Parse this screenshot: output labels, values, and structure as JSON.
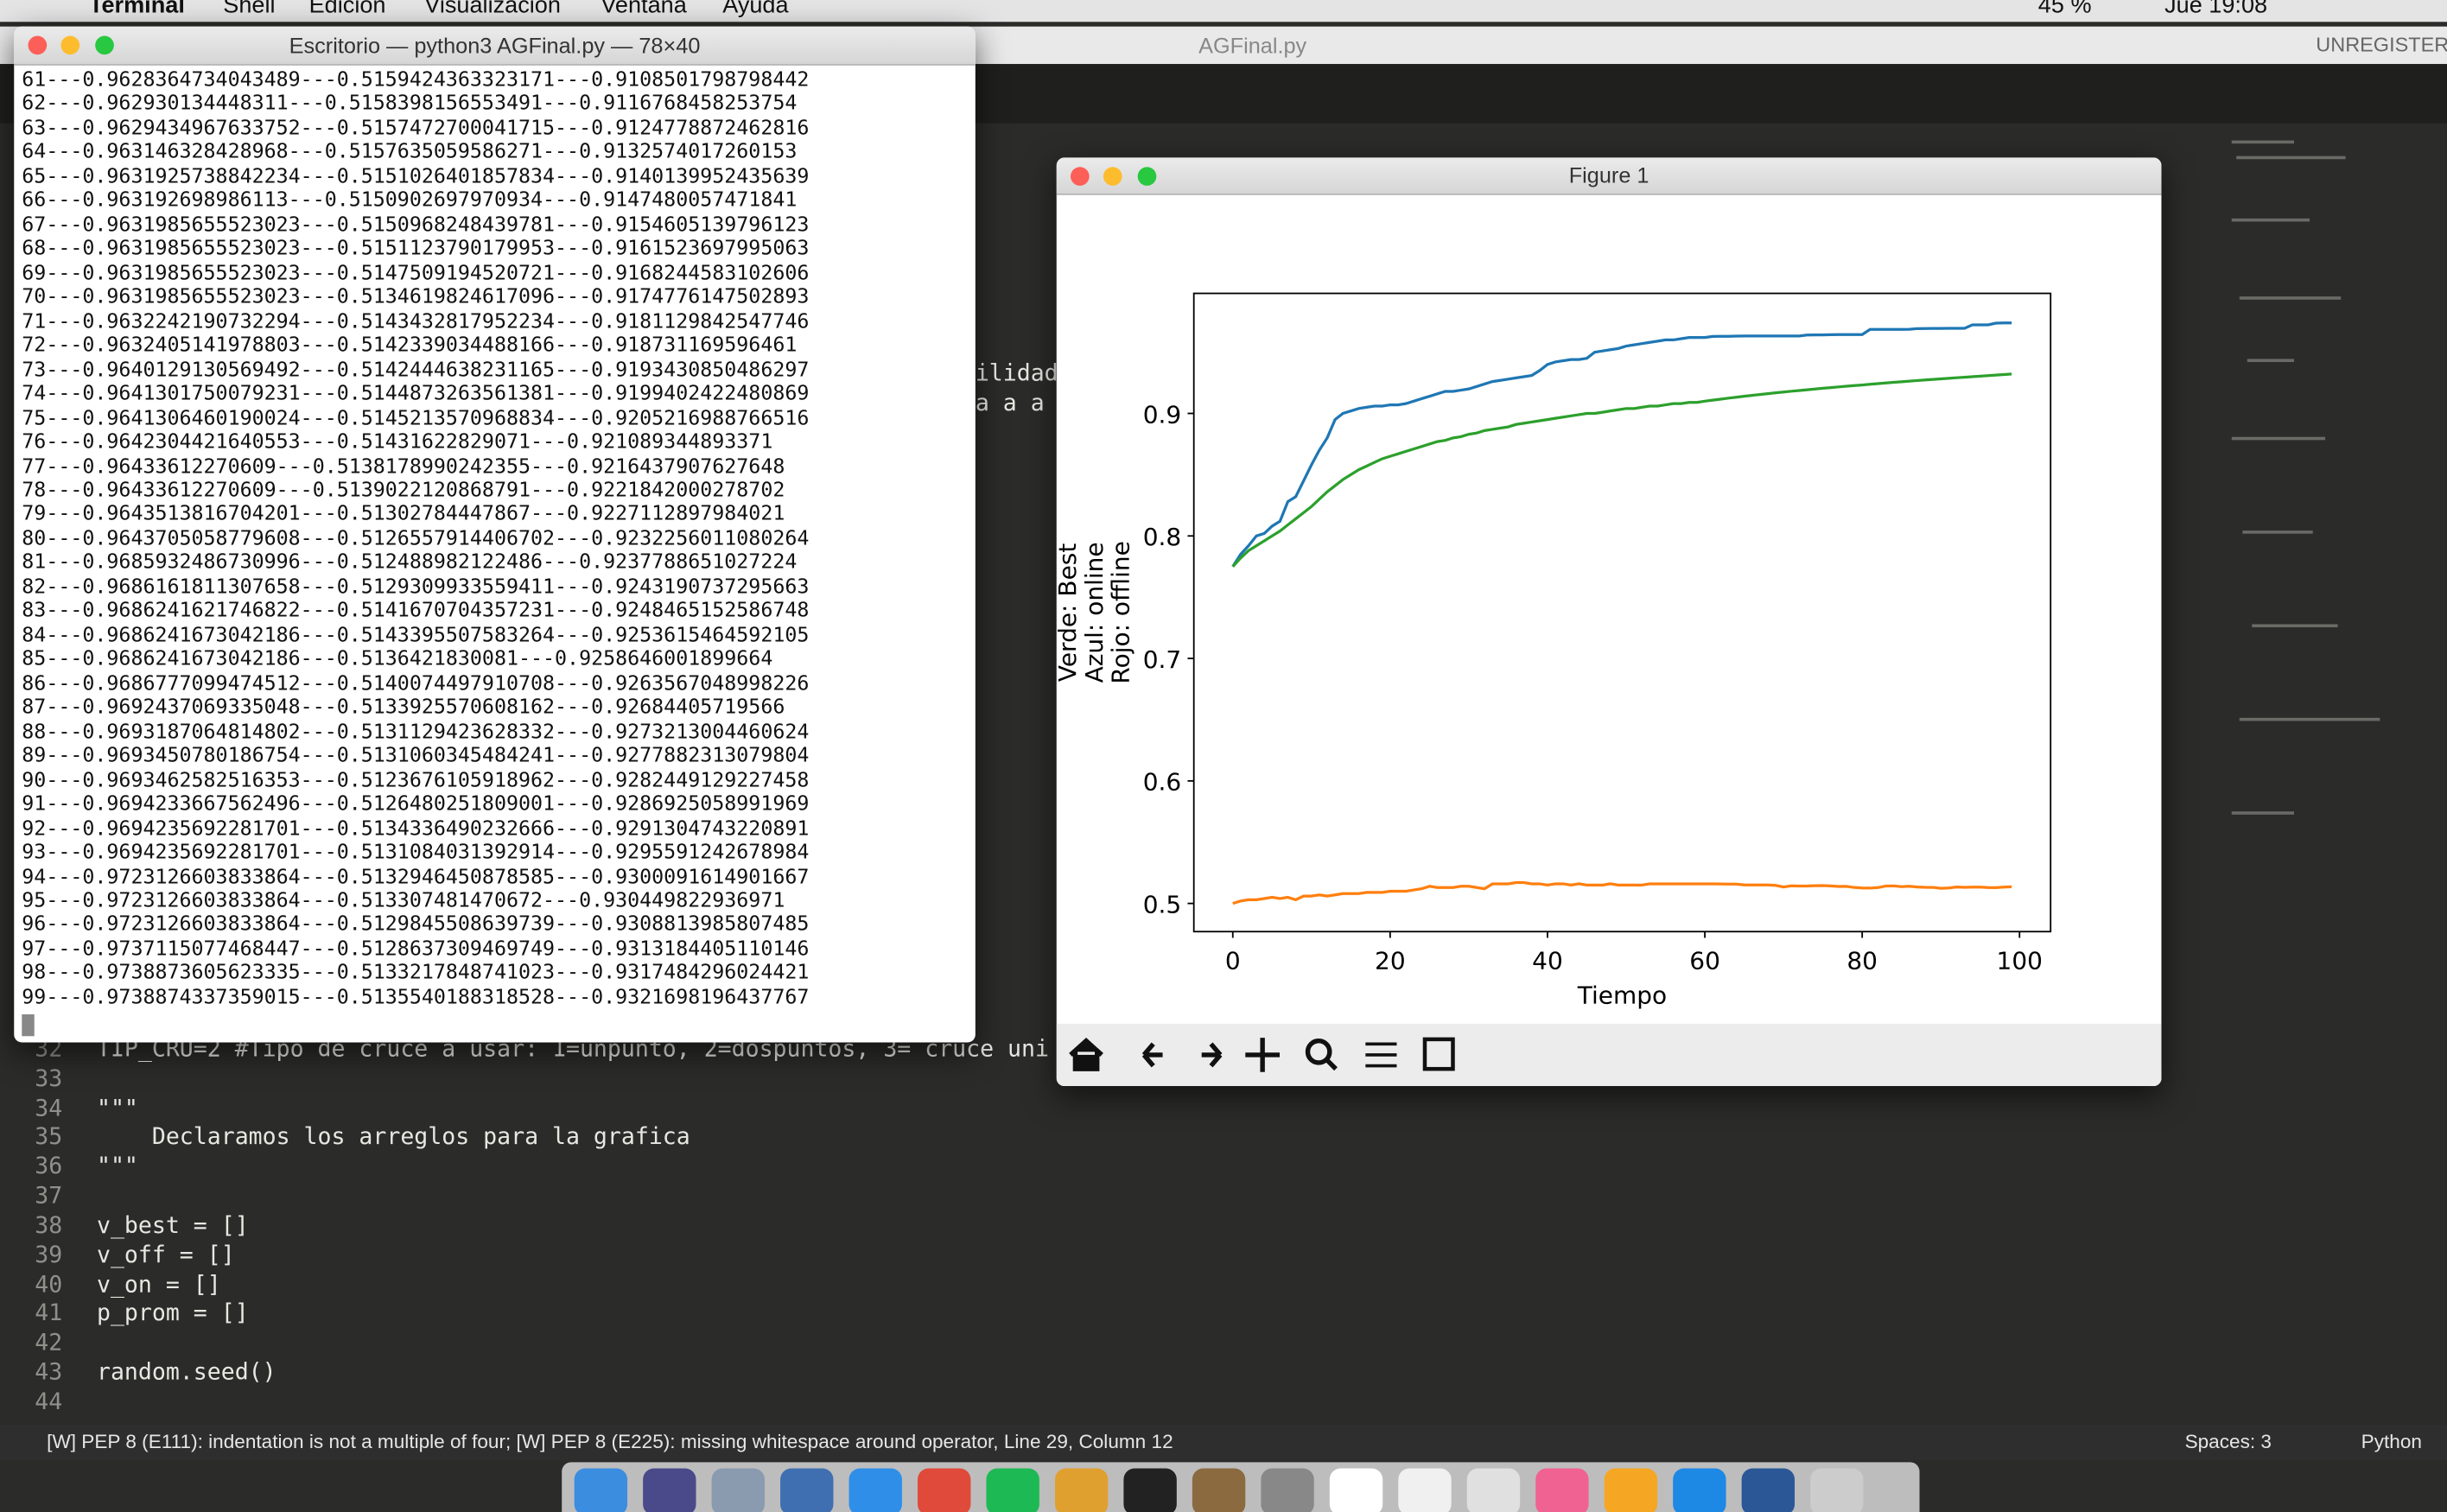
{
  "menubar": {
    "items": [
      "Terminal",
      "Shell",
      "Edición",
      "Visualización",
      "Ventana",
      "Ayuda"
    ],
    "battery": "45 %",
    "clock": "Jue 19:08"
  },
  "editor": {
    "tab": "AGFinal.py",
    "license": "UNREGISTER",
    "fragments": [
      "ilidad",
      "a a a"
    ],
    "lines": [
      {
        "number": 32,
        "code": "TIP_CRU=2 #Tipo de cruce a usar: 1=unpunto, 2=dospuntos, 3= cruce uni"
      },
      {
        "number": 33
      },
      {
        "number": 34,
        "code": "\"\"\""
      },
      {
        "number": 35,
        "code": "    Declaramos los arreglos para la grafica"
      },
      {
        "number": 36,
        "code": "\"\"\""
      },
      {
        "number": 37
      },
      {
        "number": 38,
        "code": "v_best = []"
      },
      {
        "number": 39,
        "code": "v_off = []"
      },
      {
        "number": 40,
        "code": "v_on = []"
      },
      {
        "number": 41,
        "code": "p_prom = []"
      },
      {
        "number": 42
      },
      {
        "number": 43,
        "code": "random.seed()"
      },
      {
        "number": 44
      }
    ],
    "status": {
      "message": "[W] PEP 8 (E111): indentation is not a multiple of four; [W] PEP 8 (E225): missing whitespace around operator, Line 29, Column 12",
      "spaces": "Spaces: 3",
      "language": "Python"
    }
  },
  "terminal": {
    "title": "Escritorio — python3 AGFinal.py — 78×40",
    "lines": [
      "61---0.9628364734043489---0.5159424363323171---0.9108501798798442",
      "62---0.962930134448311---0.5158398156553491---0.9116768458253754",
      "63---0.9629434967633752---0.5157472700041715---0.9124778872462816",
      "64---0.963146328428968---0.5157635059586271---0.9132574017260153",
      "65---0.9631925738842234---0.5151026401857834---0.9140139952435639",
      "66---0.963192698986113---0.5150902697970934---0.9147480057471841",
      "67---0.9631985655523023---0.5150968248439781---0.9154605139796123",
      "68---0.9631985655523023---0.5151123790179953---0.9161523697995063",
      "69---0.9631985655523023---0.5147509194520721---0.9168244583102606",
      "70---0.9631985655523023---0.5134619824617096---0.9174776147502893",
      "71---0.9632242190732294---0.5143432817952234---0.9181129842547746",
      "72---0.9632405141978803---0.5142339034488166---0.918731169596461",
      "73---0.9640129130569492---0.5142444638231165---0.9193430850486297",
      "74---0.9641301750079231---0.5144873263561381---0.9199402422480869",
      "75---0.9641306460190024---0.5145213570968834---0.9205216988766516",
      "76---0.9642304421640553---0.51431622829071---0.921089344893371",
      "77---0.96433612270609---0.5138178990242355---0.9216437907627648",
      "78---0.96433612270609---0.5139022120868791---0.9221842000278702",
      "79---0.9643513816704201---0.51302784447867---0.9227112897984021",
      "80---0.9643705058779608---0.5126557914406702---0.9232256011080264",
      "81---0.9685932486730996---0.512488982122486---0.9237788651027224",
      "82---0.9686161811307658---0.5129309933559411---0.9243190737295663",
      "83---0.9686241621746822---0.5141670704357231---0.9248465152586748",
      "84---0.9686241673042186---0.5143395507583264---0.9253615464592105",
      "85---0.9686241673042186---0.5136421830081---0.9258646001899664",
      "86---0.9686777099474512---0.5140074497910708---0.9263567048998226",
      "87---0.9692437069335048---0.5133925570608162---0.92684405719566",
      "88---0.9693187064814802---0.5131129423628332---0.9273213004460624",
      "89---0.9693450780186754---0.5131060345484241---0.9277882313079804",
      "90---0.9693462582516353---0.5123676105918962---0.9282449129227458",
      "91---0.9694233667562496---0.5126480251809001---0.9286925058991969",
      "92---0.9694235692281701---0.5134336490232666---0.9291304743220891",
      "93---0.9694235692281701---0.5131084031392914---0.9295591242678984",
      "94---0.9723126603833864---0.5132946450878585---0.9300091614901667",
      "95---0.9723126603833864---0.513307481470672---0.930449822936971",
      "96---0.9723126603833864---0.5129845508639739---0.9308813985807485",
      "97---0.9737115077468447---0.5128637309469749---0.9313184405110146",
      "98---0.9738873605623335---0.5133217848741023---0.9317484296024421",
      "99---0.9738874337359015---0.5135540188318528---0.9321698196437767"
    ]
  },
  "figure_window": {
    "title": "Figure 1"
  },
  "chart_data": {
    "type": "line",
    "ylabel": [
      "Verde: Best",
      "Azul: online",
      "Rojo: offline"
    ],
    "xlabel": "Tiempo",
    "x": [
      0,
      1,
      2,
      3,
      4,
      5,
      6,
      7,
      8,
      9,
      10,
      11,
      12,
      13,
      14,
      15,
      16,
      17,
      18,
      19,
      20,
      21,
      22,
      23,
      24,
      25,
      26,
      27,
      28,
      29,
      30,
      31,
      32,
      33,
      34,
      35,
      36,
      37,
      38,
      39,
      40,
      41,
      42,
      43,
      44,
      45,
      46,
      47,
      48,
      49,
      50,
      51,
      52,
      53,
      54,
      55,
      56,
      57,
      58,
      59,
      60,
      61,
      62,
      63,
      64,
      65,
      66,
      67,
      68,
      69,
      70,
      71,
      72,
      73,
      74,
      75,
      76,
      77,
      78,
      79,
      80,
      81,
      82,
      83,
      84,
      85,
      86,
      87,
      88,
      89,
      90,
      91,
      92,
      93,
      94,
      95,
      96,
      97,
      98,
      99
    ],
    "xlim": [
      -4.95,
      103.95
    ],
    "xticks": [
      0,
      20,
      40,
      60,
      80,
      100
    ],
    "ylim": [
      0.477,
      0.998
    ],
    "yticks": [
      0.5,
      0.6,
      0.7,
      0.8,
      0.9
    ],
    "series": [
      {
        "color": "#1f77b4",
        "values": [
          0.775,
          0.785,
          0.792,
          0.8,
          0.802,
          0.808,
          0.812,
          0.828,
          0.832,
          0.845,
          0.858,
          0.87,
          0.88,
          0.895,
          0.9,
          0.902,
          0.904,
          0.905,
          0.906,
          0.906,
          0.907,
          0.907,
          0.908,
          0.91,
          0.912,
          0.914,
          0.916,
          0.918,
          0.918,
          0.919,
          0.92,
          0.922,
          0.924,
          0.926,
          0.927,
          0.928,
          0.929,
          0.93,
          0.931,
          0.935,
          0.94,
          0.942,
          0.943,
          0.944,
          0.944,
          0.945,
          0.95,
          0.951,
          0.952,
          0.953,
          0.955,
          0.956,
          0.957,
          0.958,
          0.959,
          0.96,
          0.96,
          0.961,
          0.962,
          0.962,
          0.962,
          0.9628364734043489,
          0.962930134448311,
          0.9629434967633752,
          0.963146328428968,
          0.9631925738842234,
          0.963192698986113,
          0.9631985655523023,
          0.9631985655523023,
          0.9631985655523023,
          0.9631985655523023,
          0.9632242190732294,
          0.9632405141978803,
          0.9640129130569492,
          0.9641301750079231,
          0.9641306460190024,
          0.9642304421640553,
          0.96433612270609,
          0.96433612270609,
          0.9643513816704201,
          0.9643705058779608,
          0.9685932486730996,
          0.9686161811307658,
          0.9686241621746822,
          0.9686241673042186,
          0.9686241673042186,
          0.9686777099474512,
          0.9692437069335048,
          0.9693187064814802,
          0.9693450780186754,
          0.9693462582516353,
          0.9694233667562496,
          0.9694235692281701,
          0.9694235692281701,
          0.9723126603833864,
          0.9723126603833864,
          0.9723126603833864,
          0.9737115077468447,
          0.9738873605623335,
          0.9738874337359015
        ]
      },
      {
        "color": "#ff7f0e",
        "values": [
          0.5,
          0.502,
          0.503,
          0.503,
          0.504,
          0.505,
          0.504,
          0.505,
          0.503,
          0.506,
          0.506,
          0.507,
          0.506,
          0.507,
          0.508,
          0.508,
          0.508,
          0.509,
          0.509,
          0.509,
          0.51,
          0.51,
          0.51,
          0.511,
          0.512,
          0.514,
          0.513,
          0.513,
          0.513,
          0.514,
          0.514,
          0.513,
          0.512,
          0.516,
          0.516,
          0.516,
          0.517,
          0.517,
          0.516,
          0.516,
          0.515,
          0.516,
          0.516,
          0.515,
          0.516,
          0.515,
          0.515,
          0.515,
          0.516,
          0.515,
          0.515,
          0.515,
          0.515,
          0.516,
          0.516,
          0.516,
          0.516,
          0.516,
          0.516,
          0.516,
          0.516,
          0.5159424363323171,
          0.5158398156553491,
          0.5157472700041715,
          0.5157635059586271,
          0.5151026401857834,
          0.5150902697970934,
          0.5150968248439781,
          0.5151123790179953,
          0.5147509194520721,
          0.5134619824617096,
          0.5143432817952234,
          0.5142339034488166,
          0.5142444638231165,
          0.5144873263561381,
          0.5145213570968834,
          0.51431622829071,
          0.5138178990242355,
          0.5139022120868791,
          0.51302784447867,
          0.5126557914406702,
          0.512488982122486,
          0.5129309933559411,
          0.5141670704357231,
          0.5143395507583264,
          0.5136421830081,
          0.5140074497910708,
          0.5133925570608162,
          0.5131129423628332,
          0.5131060345484241,
          0.5123676105918962,
          0.5126480251809001,
          0.5134336490232666,
          0.5131084031392914,
          0.5132946450878585,
          0.513307481470672,
          0.5129845508639739,
          0.5128637309469749,
          0.5133217848741023,
          0.5135540188318528
        ]
      },
      {
        "color": "#2ca02c",
        "values": [
          0.775,
          0.782,
          0.788,
          0.792,
          0.796,
          0.8,
          0.804,
          0.809,
          0.814,
          0.819,
          0.824,
          0.83,
          0.836,
          0.841,
          0.846,
          0.85,
          0.854,
          0.857,
          0.86,
          0.863,
          0.865,
          0.867,
          0.869,
          0.871,
          0.873,
          0.875,
          0.877,
          0.878,
          0.88,
          0.881,
          0.883,
          0.884,
          0.886,
          0.887,
          0.888,
          0.889,
          0.891,
          0.892,
          0.893,
          0.894,
          0.895,
          0.896,
          0.897,
          0.898,
          0.899,
          0.9,
          0.9,
          0.901,
          0.902,
          0.903,
          0.904,
          0.904,
          0.905,
          0.906,
          0.906,
          0.907,
          0.908,
          0.908,
          0.909,
          0.909,
          0.91,
          0.9108501798798442,
          0.9116768458253754,
          0.9124778872462816,
          0.9132574017260153,
          0.9140139952435639,
          0.9147480057471841,
          0.9154605139796123,
          0.9161523697995063,
          0.9168244583102606,
          0.9174776147502893,
          0.9181129842547746,
          0.918731169596461,
          0.9193430850486297,
          0.9199402422480869,
          0.9205216988766516,
          0.921089344893371,
          0.9216437907627648,
          0.9221842000278702,
          0.9227112897984021,
          0.9232256011080264,
          0.9237788651027224,
          0.9243190737295663,
          0.9248465152586748,
          0.9253615464592105,
          0.9258646001899664,
          0.9263567048998226,
          0.92684405719566,
          0.9273213004460624,
          0.9277882313079804,
          0.9282449129227458,
          0.9286925058991969,
          0.9291304743220891,
          0.9295591242678984,
          0.9300091614901667,
          0.930449822936971,
          0.9308813985807485,
          0.9313184405110146,
          0.9317484296024421,
          0.9321698196437767
        ]
      }
    ]
  }
}
